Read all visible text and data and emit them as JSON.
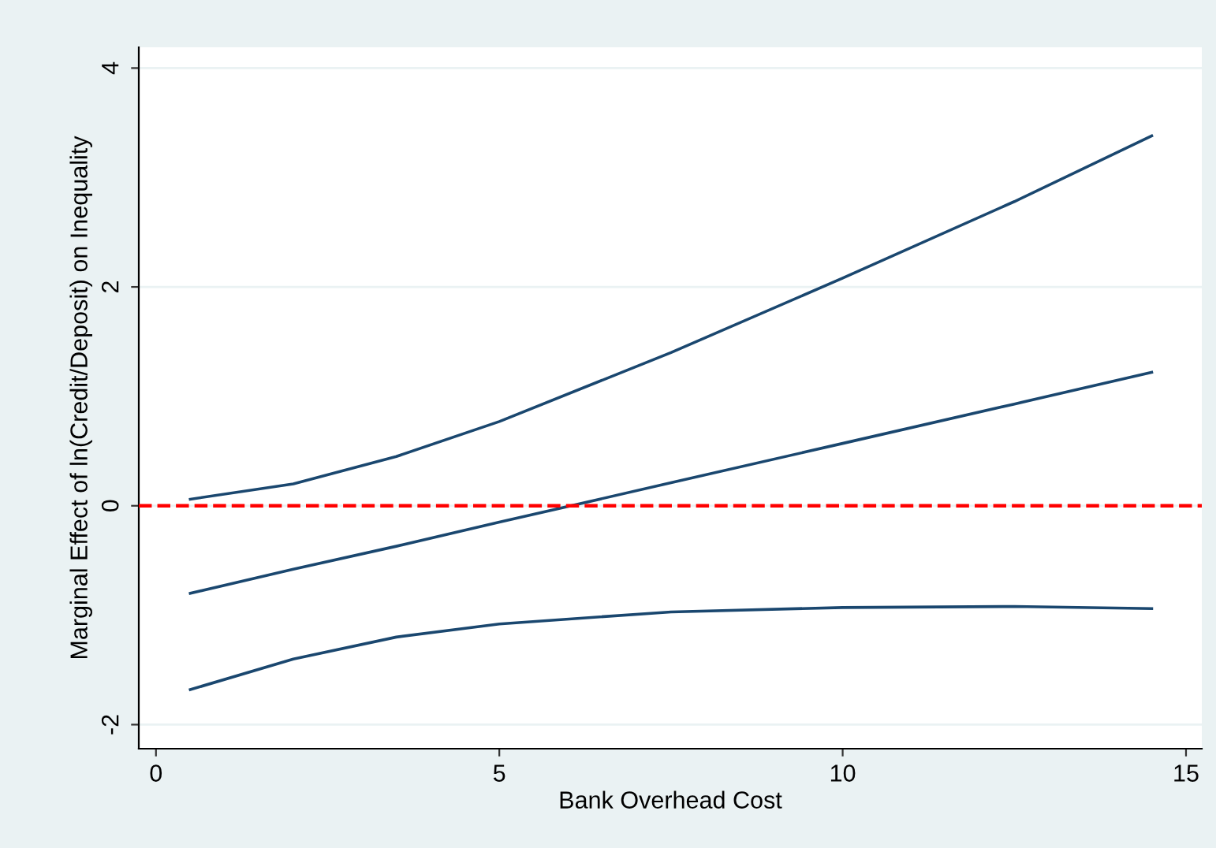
{
  "chart_data": {
    "type": "line",
    "xlabel": "Bank Overhead Cost",
    "ylabel": "Marginal Effect of ln(Credit/Deposit) on Inequality",
    "x": [
      0.5,
      2,
      3.5,
      5,
      7.5,
      10,
      12.5,
      14.5
    ],
    "series": [
      {
        "color": "#1a476f",
        "values": [
          0.06,
          0.2,
          0.45,
          0.77,
          1.4,
          2.08,
          2.78,
          3.38
        ]
      },
      {
        "color": "#1a476f",
        "values": [
          -0.8,
          -0.58,
          -0.37,
          -0.15,
          0.21,
          0.57,
          0.93,
          1.22
        ]
      },
      {
        "color": "#1a476f",
        "values": [
          -1.68,
          -1.4,
          -1.2,
          -1.08,
          -0.97,
          -0.93,
          -0.92,
          -0.94
        ]
      }
    ],
    "xlim": [
      -0.25,
      15.23
    ],
    "ylim": [
      -2.22,
      4.19
    ],
    "xticks": [
      0,
      5,
      10,
      15
    ],
    "yticks": [
      -2,
      0,
      2,
      4
    ],
    "grid": "y",
    "legend": false,
    "marker": "none",
    "line_style": "solid",
    "ref_lines": [
      {
        "axis": "y",
        "value": 0,
        "color": "#ff0000",
        "line_style": "dashed"
      }
    ]
  }
}
